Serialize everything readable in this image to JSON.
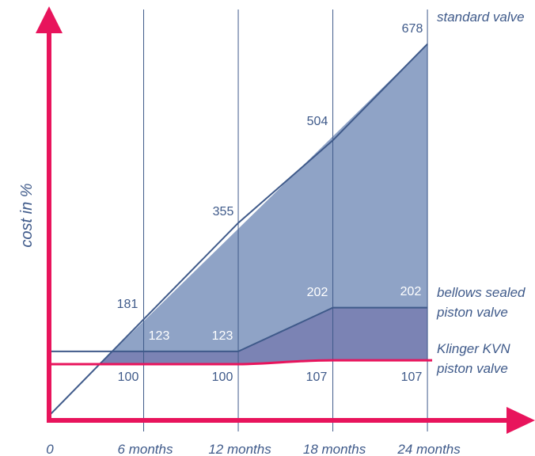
{
  "chart_data": {
    "type": "area",
    "title": "",
    "xlabel": "",
    "ylabel": "cost in %",
    "x": [
      0,
      6,
      12,
      18,
      24
    ],
    "x_tick_labels": [
      "0",
      "6 months",
      "12 months",
      "18 months",
      "24 months"
    ],
    "ylim": [
      0,
      720
    ],
    "grid": "vertical lines at month ticks",
    "series": [
      {
        "name_lines": [
          "standard valve"
        ],
        "values": [
          null,
          181,
          355,
          504,
          678
        ],
        "value_labels": [
          "",
          "181",
          "355",
          "504",
          "678"
        ],
        "color": "#3f5a8a",
        "fill": "#8fa3c6"
      },
      {
        "name_lines": [
          "bellows sealed",
          "piston valve"
        ],
        "values": [
          null,
          123,
          123,
          202,
          202
        ],
        "value_labels": [
          "",
          "123",
          "123",
          "202",
          "202"
        ],
        "color": "#3f5a8a",
        "fill": "#7b83b4"
      },
      {
        "name_lines": [
          "Klinger KVN",
          "piston valve"
        ],
        "values": [
          null,
          100,
          100,
          107,
          107
        ],
        "value_labels": [
          "",
          "100",
          "100",
          "107",
          "107"
        ],
        "color": "#e8145c"
      }
    ]
  },
  "colors": {
    "axis": "#e8145c",
    "grid": "#3f5a8a",
    "text": "#3f5a8a"
  }
}
